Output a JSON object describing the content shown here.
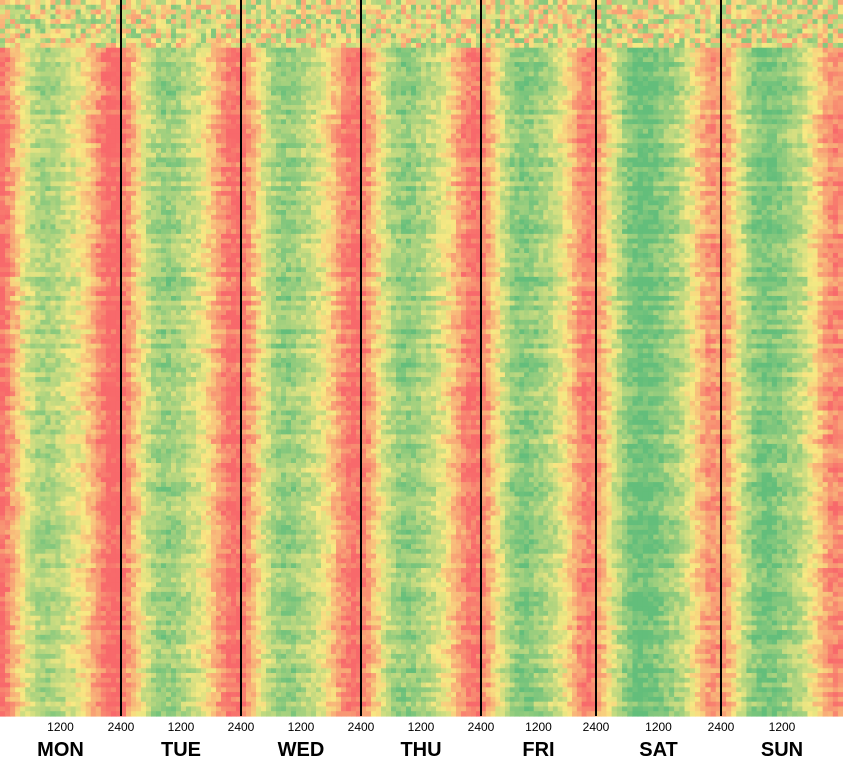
{
  "chart_data": {
    "type": "heatmap",
    "title": "",
    "xlabel": "",
    "ylabel": "",
    "days": [
      "MON",
      "TUE",
      "WED",
      "THU",
      "FRI",
      "SAT",
      "SUN"
    ],
    "tick_labels": [
      "1200",
      "2400",
      "1200",
      "2400",
      "1200",
      "2400",
      "1200",
      "2400",
      "1200",
      "2400",
      "1200",
      "2400",
      "1200"
    ],
    "hours_per_day": 24,
    "color_scale": {
      "low": "#63be7b",
      "mid": "#f8e983",
      "high": "#f8696b"
    },
    "hourly_profile": [
      0.85,
      0.75,
      0.62,
      0.5,
      0.38,
      0.28,
      0.2,
      0.15,
      0.12,
      0.12,
      0.14,
      0.18,
      0.22,
      0.26,
      0.3,
      0.35,
      0.42,
      0.5,
      0.6,
      0.7,
      0.8,
      0.88,
      0.92,
      0.9
    ],
    "day_offsets": [
      0.12,
      0.06,
      0.05,
      0.04,
      0.0,
      -0.1,
      -0.05
    ],
    "separators": true,
    "grid": false
  }
}
